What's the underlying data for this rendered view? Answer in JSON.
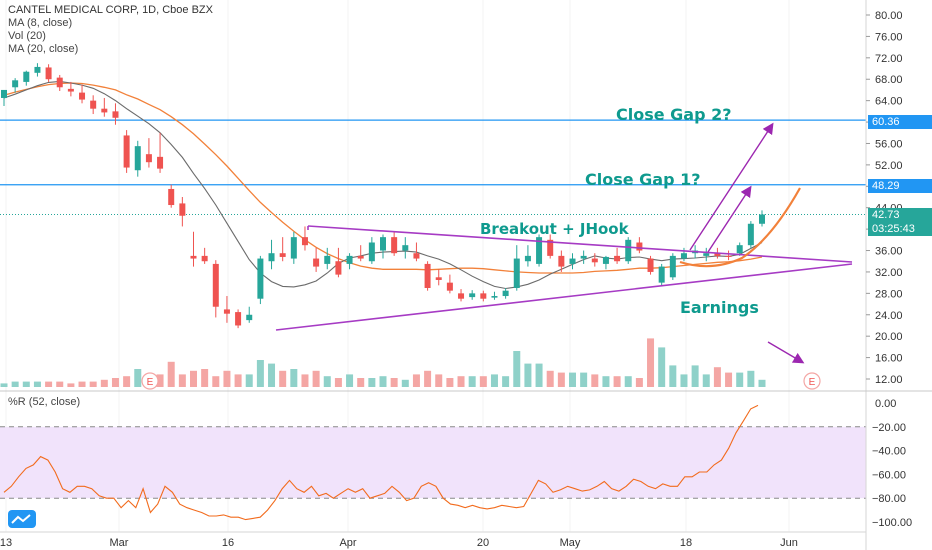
{
  "header": {
    "symbol_line": "CANTEL MEDICAL CORP, 1D, Cboe BZX",
    "indicators": [
      "MA (8, close)",
      "Vol (20)",
      "MA (20, close)"
    ],
    "osc_label": "%R (52, close)"
  },
  "price_tags": {
    "last": "42.73",
    "countdown": "03:25:43",
    "gap1": "48.29",
    "gap2": "60.36"
  },
  "annotations": {
    "close_gap_2": "Close Gap 2?",
    "close_gap_1": "Close Gap 1?",
    "breakout": "Breakout + JHook",
    "earnings": "Earnings",
    "earnings_marker": "E"
  },
  "colors": {
    "up": "#26a69a",
    "down": "#ef5350",
    "vol_up": "#8fd1c9",
    "vol_down": "#f4a6a4",
    "ma8": "#6b6b6b",
    "ma20": "#f2813a",
    "triangle": "#a63bc4",
    "arrows": "#9c27b0",
    "gap_line": "#2196f3",
    "annotation_text": "#0e9a8e",
    "wr_line": "#f26b1d",
    "wr_band": "#f1e3fb"
  },
  "chart_data": [
    {
      "type": "candlestick",
      "title": "CANTEL MEDICAL CORP, 1D, Cboe BZX",
      "x_tick_labels": [
        "13",
        "Mar",
        "16",
        "Apr",
        "20",
        "May",
        "18",
        "Jun"
      ],
      "y_ticks": [
        12,
        16,
        20,
        24,
        28,
        32,
        36,
        40,
        44,
        48,
        52,
        56,
        60,
        64,
        68,
        72,
        76,
        80
      ],
      "ylim": [
        10,
        82
      ],
      "horizontal_levels": [
        60.36,
        48.29,
        42.73
      ],
      "candles": [
        {
          "o": 64.5,
          "h": 66.0,
          "l": 63.0,
          "c": 66.0
        },
        {
          "o": 66.5,
          "h": 68.2,
          "l": 65.5,
          "c": 67.8
        },
        {
          "o": 67.5,
          "h": 69.6,
          "l": 66.8,
          "c": 69.4
        },
        {
          "o": 69.2,
          "h": 71.0,
          "l": 68.5,
          "c": 70.3
        },
        {
          "o": 70.2,
          "h": 70.8,
          "l": 67.5,
          "c": 68.0
        },
        {
          "o": 68.3,
          "h": 68.8,
          "l": 65.8,
          "c": 66.5
        },
        {
          "o": 66.2,
          "h": 67.5,
          "l": 64.8,
          "c": 65.7
        },
        {
          "o": 65.5,
          "h": 67.0,
          "l": 63.5,
          "c": 64.2
        },
        {
          "o": 64.0,
          "h": 65.0,
          "l": 61.5,
          "c": 62.5
        },
        {
          "o": 62.5,
          "h": 64.5,
          "l": 61.0,
          "c": 61.8
        },
        {
          "o": 62.0,
          "h": 63.5,
          "l": 59.5,
          "c": 60.8
        },
        {
          "o": 57.5,
          "h": 58.5,
          "l": 50.5,
          "c": 51.5
        },
        {
          "o": 51.0,
          "h": 56.5,
          "l": 49.8,
          "c": 55.5
        },
        {
          "o": 54.0,
          "h": 57.0,
          "l": 51.5,
          "c": 52.5
        },
        {
          "o": 53.5,
          "h": 58.0,
          "l": 50.5,
          "c": 51.3
        },
        {
          "o": 47.5,
          "h": 48.3,
          "l": 44.0,
          "c": 44.5
        },
        {
          "o": 44.8,
          "h": 46.0,
          "l": 40.5,
          "c": 42.5
        },
        {
          "o": 35.0,
          "h": 39.5,
          "l": 33.0,
          "c": 34.5
        },
        {
          "o": 35.0,
          "h": 36.5,
          "l": 33.5,
          "c": 34.0
        },
        {
          "o": 33.5,
          "h": 34.2,
          "l": 23.5,
          "c": 25.5
        },
        {
          "o": 25.0,
          "h": 27.5,
          "l": 22.5,
          "c": 24.2
        },
        {
          "o": 24.5,
          "h": 25.0,
          "l": 21.5,
          "c": 22.0
        },
        {
          "o": 23.0,
          "h": 25.5,
          "l": 22.5,
          "c": 24.0
        },
        {
          "o": 27.0,
          "h": 35.0,
          "l": 26.0,
          "c": 34.5
        },
        {
          "o": 34.0,
          "h": 38.0,
          "l": 32.5,
          "c": 35.5
        },
        {
          "o": 35.5,
          "h": 38.5,
          "l": 34.0,
          "c": 34.8
        },
        {
          "o": 34.5,
          "h": 39.5,
          "l": 33.5,
          "c": 38.5
        },
        {
          "o": 38.5,
          "h": 40.5,
          "l": 36.0,
          "c": 37.0
        },
        {
          "o": 34.5,
          "h": 36.5,
          "l": 32.0,
          "c": 33.0
        },
        {
          "o": 33.5,
          "h": 36.5,
          "l": 32.5,
          "c": 35.0
        },
        {
          "o": 34.0,
          "h": 36.5,
          "l": 31.0,
          "c": 31.5
        },
        {
          "o": 33.5,
          "h": 35.5,
          "l": 32.5,
          "c": 35.0
        },
        {
          "o": 35.0,
          "h": 37.0,
          "l": 34.0,
          "c": 34.5
        },
        {
          "o": 34.0,
          "h": 38.5,
          "l": 33.5,
          "c": 37.5
        },
        {
          "o": 36.0,
          "h": 39.0,
          "l": 34.5,
          "c": 38.5
        },
        {
          "o": 38.5,
          "h": 39.5,
          "l": 35.0,
          "c": 35.5
        },
        {
          "o": 36.0,
          "h": 38.5,
          "l": 34.5,
          "c": 37.0
        },
        {
          "o": 35.5,
          "h": 37.5,
          "l": 34.0,
          "c": 34.5
        },
        {
          "o": 33.5,
          "h": 34.0,
          "l": 28.5,
          "c": 29.0
        },
        {
          "o": 31.0,
          "h": 32.5,
          "l": 29.5,
          "c": 30.5
        },
        {
          "o": 30.0,
          "h": 31.5,
          "l": 28.0,
          "c": 28.5
        },
        {
          "o": 28.0,
          "h": 28.8,
          "l": 26.5,
          "c": 27.0
        },
        {
          "o": 27.3,
          "h": 28.6,
          "l": 26.8,
          "c": 28.0
        },
        {
          "o": 28.0,
          "h": 28.5,
          "l": 26.5,
          "c": 27.0
        },
        {
          "o": 27.2,
          "h": 28.3,
          "l": 26.8,
          "c": 27.5
        },
        {
          "o": 27.5,
          "h": 29.0,
          "l": 27.0,
          "c": 28.5
        },
        {
          "o": 29.0,
          "h": 37.0,
          "l": 28.5,
          "c": 34.5
        },
        {
          "o": 34.0,
          "h": 37.0,
          "l": 33.0,
          "c": 35.0
        },
        {
          "o": 33.5,
          "h": 39.0,
          "l": 33.0,
          "c": 38.5
        },
        {
          "o": 38.0,
          "h": 39.0,
          "l": 34.5,
          "c": 35.0
        },
        {
          "o": 35.0,
          "h": 36.0,
          "l": 32.0,
          "c": 33.0
        },
        {
          "o": 33.5,
          "h": 35.5,
          "l": 32.5,
          "c": 34.5
        },
        {
          "o": 34.5,
          "h": 36.0,
          "l": 33.5,
          "c": 35.0
        },
        {
          "o": 34.5,
          "h": 35.5,
          "l": 33.0,
          "c": 33.8
        },
        {
          "o": 33.5,
          "h": 35.0,
          "l": 32.5,
          "c": 34.8
        },
        {
          "o": 35.0,
          "h": 36.5,
          "l": 33.5,
          "c": 34.0
        },
        {
          "o": 34.0,
          "h": 38.5,
          "l": 33.5,
          "c": 38.0
        },
        {
          "o": 37.5,
          "h": 38.5,
          "l": 35.5,
          "c": 36.0
        },
        {
          "o": 34.5,
          "h": 35.0,
          "l": 31.5,
          "c": 32.0
        },
        {
          "o": 30.0,
          "h": 33.5,
          "l": 29.5,
          "c": 33.0
        },
        {
          "o": 31.0,
          "h": 35.5,
          "l": 30.5,
          "c": 35.0
        },
        {
          "o": 34.5,
          "h": 36.5,
          "l": 34.0,
          "c": 35.5
        },
        {
          "o": 35.5,
          "h": 37.0,
          "l": 34.5,
          "c": 36.0
        },
        {
          "o": 35.0,
          "h": 36.5,
          "l": 34.0,
          "c": 35.5
        },
        {
          "o": 35.5,
          "h": 36.5,
          "l": 34.5,
          "c": 35.0
        },
        {
          "o": 35.0,
          "h": 36.0,
          "l": 34.2,
          "c": 34.8
        },
        {
          "o": 35.5,
          "h": 37.5,
          "l": 35.0,
          "c": 37.0
        },
        {
          "o": 37.0,
          "h": 41.5,
          "l": 36.5,
          "c": 41.0
        },
        {
          "o": 41.0,
          "h": 43.5,
          "l": 40.5,
          "c": 42.73
        }
      ],
      "ma8": [
        64.5,
        65.2,
        66.0,
        66.8,
        67.4,
        67.6,
        67.3,
        66.9,
        66.3,
        65.3,
        64.0,
        62.5,
        61.1,
        59.7,
        58.0,
        55.8,
        53.4,
        50.4,
        47.6,
        44.5,
        41.1,
        37.7,
        34.3,
        31.8,
        30.2,
        29.3,
        29.2,
        29.6,
        30.3,
        31.8,
        33.6,
        34.6,
        35.0,
        35.5,
        35.7,
        35.8,
        35.9,
        35.7,
        35.0,
        34.4,
        33.5,
        32.4,
        31.2,
        30.2,
        29.3,
        28.9,
        29.2,
        29.7,
        30.5,
        31.6,
        32.5,
        33.4,
        34.3,
        35.0,
        34.6,
        34.4,
        34.7,
        34.8,
        34.4,
        34.1,
        34.4,
        34.5,
        34.6,
        34.8,
        35.0,
        34.9,
        35.3,
        36.4,
        37.5
      ],
      "ma20": [
        65.0,
        65.6,
        66.1,
        66.6,
        67.0,
        67.2,
        67.3,
        67.2,
        66.9,
        66.5,
        66.0,
        65.1,
        64.3,
        63.3,
        62.3,
        61.0,
        59.5,
        57.8,
        55.9,
        53.9,
        51.8,
        49.5,
        47.2,
        45.0,
        43.1,
        41.3,
        39.6,
        38.0,
        36.6,
        35.4,
        34.5,
        33.7,
        33.1,
        32.7,
        32.5,
        32.5,
        32.5,
        32.5,
        32.4,
        32.5,
        32.6,
        32.7,
        32.7,
        32.6,
        32.4,
        32.2,
        32.0,
        31.9,
        31.8,
        31.8,
        31.8,
        31.8,
        31.9,
        32.1,
        32.2,
        32.3,
        32.5,
        32.7,
        32.7,
        32.8,
        33.0,
        33.2,
        33.4,
        33.6,
        33.8,
        33.9,
        34.1,
        34.4,
        34.8
      ],
      "volume_relative": [
        0.1,
        0.15,
        0.15,
        0.15,
        0.15,
        0.15,
        0.1,
        0.15,
        0.15,
        0.2,
        0.25,
        0.3,
        0.5,
        0.25,
        0.35,
        0.7,
        0.35,
        0.45,
        0.5,
        0.3,
        0.45,
        0.35,
        0.35,
        0.75,
        0.65,
        0.45,
        0.5,
        0.35,
        0.45,
        0.3,
        0.25,
        0.35,
        0.25,
        0.25,
        0.3,
        0.25,
        0.2,
        0.35,
        0.45,
        0.35,
        0.25,
        0.3,
        0.3,
        0.3,
        0.35,
        0.3,
        1.0,
        0.65,
        0.65,
        0.45,
        0.4,
        0.4,
        0.4,
        0.35,
        0.3,
        0.3,
        0.3,
        0.25,
        1.35,
        1.1,
        0.6,
        0.35,
        0.6,
        0.35,
        0.55,
        0.4,
        0.4,
        0.45,
        0.2
      ]
    },
    {
      "type": "line",
      "title": "%R (52, close)",
      "y_ticks": [
        0,
        -20,
        -40,
        -60,
        -80,
        -100
      ],
      "ylim": [
        -105,
        5
      ],
      "band": [
        -80,
        -20
      ],
      "values": [
        -75,
        -70,
        -62,
        -55,
        -52,
        -45,
        -48,
        -58,
        -72,
        -75,
        -70,
        -70,
        -72,
        -78,
        -80,
        -80,
        -88,
        -82,
        -88,
        -72,
        -92,
        -85,
        -70,
        -75,
        -85,
        -88,
        -90,
        -92,
        -95,
        -95,
        -94,
        -96,
        -96,
        -98,
        -97,
        -96,
        -90,
        -82,
        -72,
        -65,
        -72,
        -75,
        -70,
        -78,
        -76,
        -80,
        -76,
        -72,
        -75,
        -72,
        -80,
        -78,
        -76,
        -70,
        -75,
        -82,
        -80,
        -70,
        -67,
        -70,
        -80,
        -85,
        -86,
        -88,
        -86,
        -88,
        -89,
        -88,
        -86,
        -87,
        -88,
        -87,
        -76,
        -65,
        -68,
        -75,
        -73,
        -70,
        -72,
        -74,
        -73,
        -70,
        -66,
        -72,
        -74,
        -70,
        -64,
        -66,
        -70,
        -72,
        -68,
        -70,
        -70,
        -62,
        -62,
        -58,
        -58,
        -52,
        -48,
        -38,
        -25,
        -15,
        -5,
        -2
      ]
    }
  ]
}
